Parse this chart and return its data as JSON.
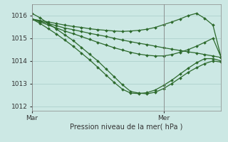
{
  "background_color": "#cce8e4",
  "line_color": "#2d6a2d",
  "grid_color": "#a8ccc8",
  "title": "Pression niveau de la mer( hPa )",
  "xlabel_mar": "Mar",
  "xlabel_mer": "Mer",
  "ylim": [
    1011.8,
    1016.5
  ],
  "yticks": [
    1012,
    1013,
    1014,
    1015,
    1016
  ],
  "xlim": [
    0,
    23
  ],
  "mar_x": 0,
  "mer_x": 16,
  "series": [
    {
      "x": [
        0,
        1,
        2,
        3,
        4,
        5,
        6,
        7,
        8,
        9,
        10,
        11,
        12,
        13,
        14,
        15,
        16,
        17,
        18,
        19,
        20,
        21,
        22,
        23
      ],
      "y": [
        1015.85,
        1015.75,
        1015.65,
        1015.55,
        1015.45,
        1015.38,
        1015.3,
        1015.22,
        1015.15,
        1015.08,
        1015.0,
        1014.92,
        1014.85,
        1014.78,
        1014.72,
        1014.65,
        1014.58,
        1014.52,
        1014.46,
        1014.4,
        1014.35,
        1014.28,
        1014.22,
        1014.15
      ]
    },
    {
      "x": [
        0,
        1,
        2,
        3,
        4,
        5,
        6,
        7,
        8,
        9,
        10,
        11,
        12,
        13,
        14,
        15,
        16,
        17,
        18,
        19,
        20,
        21,
        22,
        23
      ],
      "y": [
        1016.1,
        1015.9,
        1015.65,
        1015.4,
        1015.15,
        1014.9,
        1014.6,
        1014.3,
        1014.0,
        1013.65,
        1013.3,
        1012.95,
        1012.65,
        1012.58,
        1012.55,
        1012.62,
        1012.78,
        1013.0,
        1013.25,
        1013.5,
        1013.7,
        1013.88,
        1014.0,
        1013.95
      ]
    },
    {
      "x": [
        0,
        1,
        2,
        3,
        4,
        5,
        6,
        7,
        8,
        9,
        10,
        11,
        12,
        13,
        14,
        15,
        16,
        17,
        18,
        19,
        20,
        21,
        22,
        23
      ],
      "y": [
        1015.85,
        1015.65,
        1015.42,
        1015.18,
        1014.92,
        1014.65,
        1014.35,
        1014.05,
        1013.72,
        1013.38,
        1013.05,
        1012.75,
        1012.58,
        1012.56,
        1012.6,
        1012.72,
        1012.92,
        1013.15,
        1013.42,
        1013.68,
        1013.92,
        1014.1,
        1014.1,
        1014.0
      ]
    },
    {
      "x": [
        0,
        1,
        2,
        3,
        4,
        5,
        6,
        7,
        8,
        9,
        10,
        11,
        12,
        13,
        14,
        15,
        16,
        17,
        18,
        19,
        20,
        21,
        22,
        23
      ],
      "y": [
        1015.85,
        1015.72,
        1015.58,
        1015.45,
        1015.32,
        1015.2,
        1015.08,
        1014.95,
        1014.82,
        1014.7,
        1014.58,
        1014.48,
        1014.38,
        1014.3,
        1014.25,
        1014.22,
        1014.22,
        1014.28,
        1014.38,
        1014.5,
        1014.65,
        1014.82,
        1015.0,
        1014.15
      ]
    },
    {
      "x": [
        0,
        1,
        2,
        3,
        4,
        5,
        6,
        7,
        8,
        9,
        10,
        11,
        12,
        13,
        14,
        15,
        16,
        17,
        18,
        19,
        20,
        21,
        22,
        23
      ],
      "y": [
        1015.85,
        1015.78,
        1015.72,
        1015.65,
        1015.58,
        1015.52,
        1015.48,
        1015.42,
        1015.38,
        1015.35,
        1015.32,
        1015.3,
        1015.32,
        1015.35,
        1015.4,
        1015.48,
        1015.6,
        1015.72,
        1015.85,
        1016.0,
        1016.1,
        1015.88,
        1015.58,
        1014.15
      ]
    }
  ],
  "marker_size": 2.0,
  "linewidth": 0.9
}
